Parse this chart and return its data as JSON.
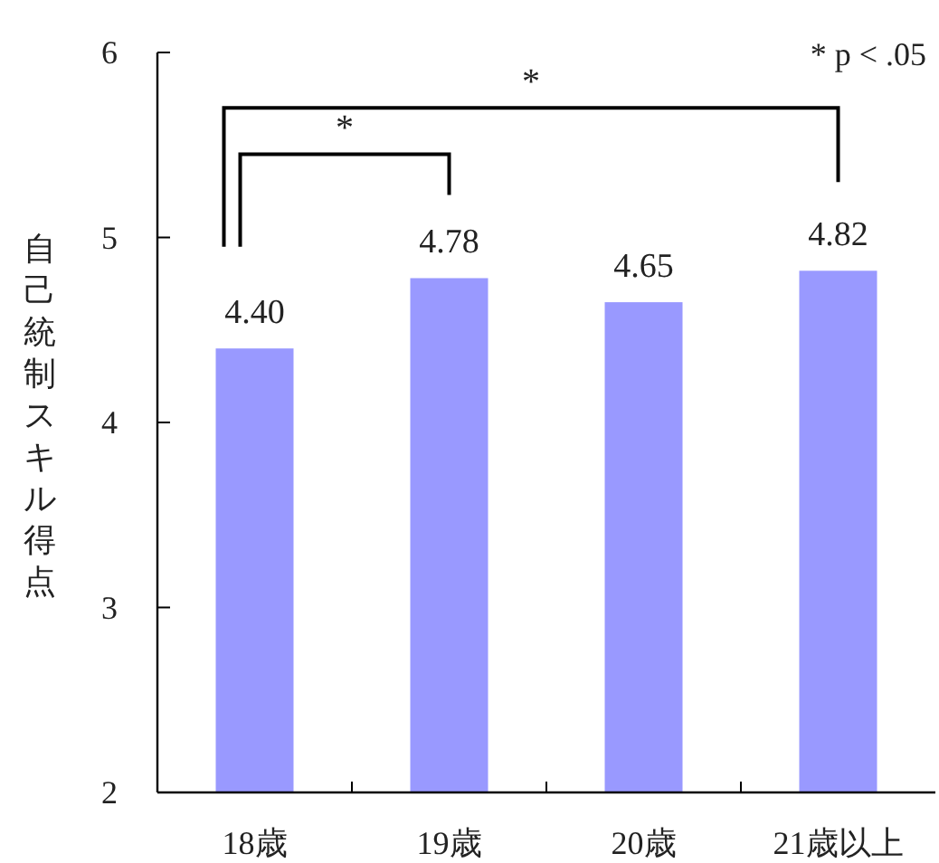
{
  "chart_data": {
    "type": "bar",
    "ylabel": "自己統制スキル得点",
    "categories": [
      "18歳",
      "19歳",
      "20歳",
      "21歳以上"
    ],
    "values": [
      4.4,
      4.78,
      4.65,
      4.82
    ],
    "value_labels": [
      "4.40",
      "4.78",
      "4.65",
      "4.82"
    ],
    "color": "#9999ff",
    "ylim": [
      2,
      6
    ],
    "yticks": [
      2,
      3,
      4,
      5,
      6
    ],
    "annotations": [
      "* p < .05",
      "*",
      "*"
    ]
  }
}
